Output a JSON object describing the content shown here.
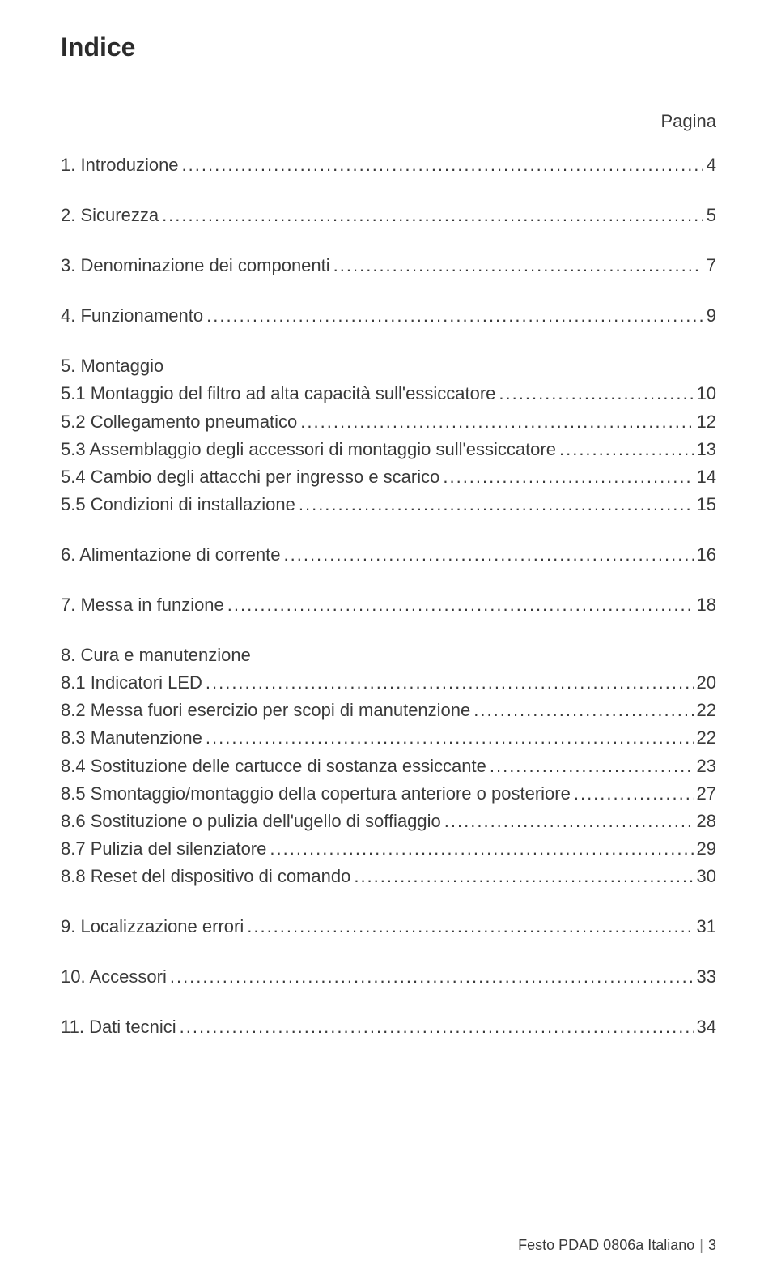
{
  "title": "Indice",
  "page_label": "Pagina",
  "toc": [
    {
      "items": [
        {
          "label": "1. Introduzione",
          "page": "4"
        }
      ]
    },
    {
      "items": [
        {
          "label": "2. Sicurezza",
          "page": "5"
        }
      ]
    },
    {
      "items": [
        {
          "label": "3. Denominazione dei componenti",
          "page": "7"
        }
      ]
    },
    {
      "items": [
        {
          "label": "4. Funzionamento",
          "page": "9"
        }
      ]
    },
    {
      "items": [
        {
          "label": "5. Montaggio",
          "page": "",
          "nodots": true
        },
        {
          "label": "5.1 Montaggio del filtro ad alta capacità sull'essiccatore",
          "page": "10"
        },
        {
          "label": "5.2 Collegamento pneumatico",
          "page": "12"
        },
        {
          "label": "5.3 Assemblaggio degli accessori di montaggio sull'essiccatore",
          "page": "13"
        },
        {
          "label": "5.4 Cambio degli attacchi per ingresso e scarico",
          "page": "14"
        },
        {
          "label": "5.5 Condizioni di installazione",
          "page": "15"
        }
      ]
    },
    {
      "items": [
        {
          "label": "6. Alimentazione di corrente",
          "page": "16"
        }
      ]
    },
    {
      "items": [
        {
          "label": "7. Messa in funzione",
          "page": "18"
        }
      ]
    },
    {
      "items": [
        {
          "label": "8. Cura e manutenzione",
          "page": "",
          "nodots": true
        },
        {
          "label": "8.1 Indicatori LED",
          "page": "20"
        },
        {
          "label": "8.2 Messa fuori esercizio per scopi di manutenzione",
          "page": "22"
        },
        {
          "label": "8.3 Manutenzione",
          "page": "22"
        },
        {
          "label": "8.4 Sostituzione delle cartucce di sostanza essiccante",
          "page": "23"
        },
        {
          "label": "8.5 Smontaggio/montaggio della copertura anteriore o posteriore",
          "page": "27"
        },
        {
          "label": "8.6 Sostituzione o pulizia dell'ugello di soffiaggio",
          "page": "28"
        },
        {
          "label": "8.7 Pulizia del silenziatore",
          "page": "29"
        },
        {
          "label": "8.8 Reset del dispositivo di comando",
          "page": "30"
        }
      ]
    },
    {
      "items": [
        {
          "label": "9. Localizzazione errori",
          "page": "31"
        }
      ]
    },
    {
      "items": [
        {
          "label": "10. Accessori",
          "page": "33"
        }
      ]
    },
    {
      "items": [
        {
          "label": "11. Dati tecnici",
          "page": "34"
        }
      ]
    }
  ],
  "footer": {
    "doc": "Festo PDAD 0806a Italiano",
    "pagenum": "3"
  }
}
